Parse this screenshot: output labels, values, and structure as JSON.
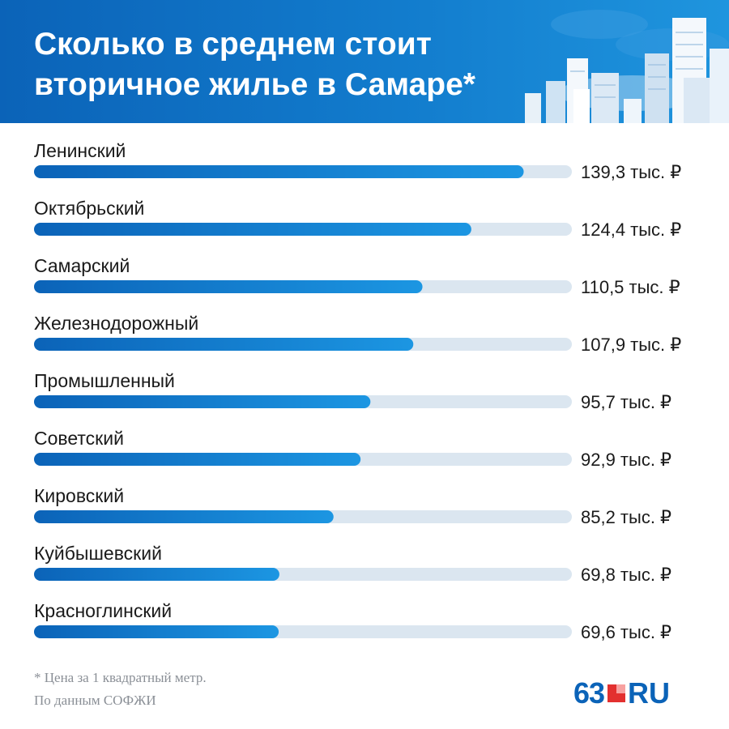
{
  "header": {
    "title_line1": "Сколько в среднем стоит",
    "title_line2": "вторичное жилье в Самаре*"
  },
  "chart_data": {
    "type": "bar",
    "orientation": "horizontal",
    "title": "Сколько в среднем стоит вторичное жилье в Самаре*",
    "categories": [
      "Ленинский",
      "Октябрьский",
      "Самарский",
      "Железнодорожный",
      "Промышленный",
      "Советский",
      "Кировский",
      "Куйбышевский",
      "Красноглинский"
    ],
    "values": [
      139.3,
      124.4,
      110.5,
      107.9,
      95.7,
      92.9,
      85.2,
      69.8,
      69.6
    ],
    "value_labels": [
      "139,3 тыс. ₽",
      "124,4 тыс. ₽",
      "110,5 тыс. ₽",
      "107,9 тыс. ₽",
      "95,7 тыс. ₽",
      "92,9 тыс. ₽",
      "85,2 тыс. ₽",
      "69,8 тыс. ₽",
      "69,6 тыс. ₽"
    ],
    "xlim": [
      0,
      153
    ],
    "grid": false,
    "bar_color_start": "#0b63b8",
    "bar_color_end": "#1c96e2",
    "track_color": "#dbe6f0"
  },
  "footnote": {
    "line1": "* Цена за 1 квадратный метр.",
    "line2": "По данным СОФЖИ"
  },
  "logo": {
    "number": "63",
    "suffix": "RU",
    "color_blue": "#0b63b8",
    "color_red": "#e3302f"
  }
}
